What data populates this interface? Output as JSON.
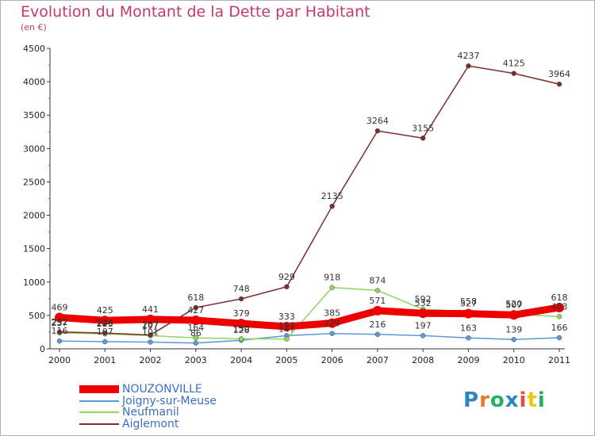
{
  "title": "Evolution du Montant de la Dette par Habitant",
  "subtitle": "(en €)",
  "logo": {
    "letters": [
      "P",
      "r",
      "o",
      "x",
      "i",
      "t",
      "i"
    ],
    "colors": [
      "#2e86c1",
      "#e67e22",
      "#27ae60",
      "#2e86c1",
      "#e74c3c",
      "#f1c40f",
      "#27ae60"
    ]
  },
  "chart_data": {
    "type": "line",
    "x": [
      "2000",
      "2001",
      "2002",
      "2003",
      "2004",
      "2005",
      "2006",
      "2007",
      "2008",
      "2009",
      "2010",
      "2011"
    ],
    "ylim": [
      0,
      4500
    ],
    "yticks": [
      "0",
      "500",
      "1000",
      "1500",
      "2000",
      "2500",
      "3000",
      "3500",
      "4000",
      "4500"
    ],
    "grid": false,
    "legend_position": "bottom-left",
    "series": [
      {
        "name": "NOUZONVILLE",
        "color": "#ee0000",
        "values": [
          469,
          425,
          441,
          427,
          379,
          333,
          385,
          571,
          532,
          527,
          507,
          618
        ],
        "labels": [
          "469",
          "425",
          "441",
          "427",
          "379",
          "333",
          "385",
          "571",
          "532",
          "527",
          "507",
          "618"
        ]
      },
      {
        "name": "Joigny-sur-Meuse",
        "color": "#5b9bd5",
        "values": [
          116,
          107,
          101,
          86,
          128,
          197,
          229,
          216,
          197,
          163,
          139,
          166
        ],
        "labels": [
          "116",
          "107",
          "101",
          "86",
          "128",
          "197",
          "229",
          "216",
          "197",
          "163",
          "139",
          "166"
        ]
      },
      {
        "name": "Neufmanil",
        "color": "#8fd65a",
        "values": [
          237,
          223,
          197,
          164,
          150,
          147,
          918,
          874,
          592,
          558,
          520,
          483
        ],
        "labels": [
          "237",
          "223",
          "197",
          "164",
          "150",
          "147",
          "918",
          "874",
          "592",
          "558",
          "520",
          "483"
        ]
      },
      {
        "name": "Aiglemont",
        "color": "#7a2e2e",
        "values": [
          252,
          236,
          207,
          618,
          748,
          929,
          2135,
          3264,
          3155,
          4237,
          4125,
          3964
        ],
        "labels": [
          "252",
          "236",
          "207",
          "618",
          "748",
          "929",
          "2135",
          "3264",
          "3155",
          "4237",
          "4125",
          "3964"
        ]
      }
    ]
  }
}
